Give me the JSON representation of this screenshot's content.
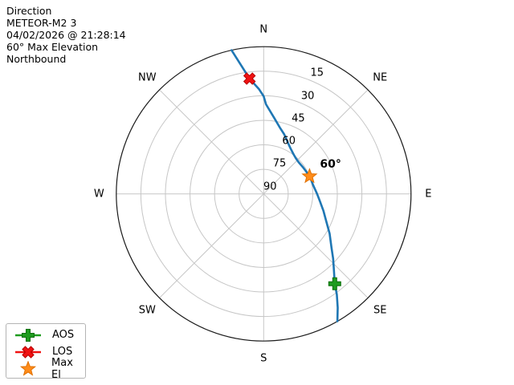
{
  "chart_data": {
    "type": "polar_sky_track",
    "title_lines": [
      "Direction",
      "METEOR-M2 3",
      "04/02/2026 @ 21:28:14",
      "60° Max Elevation",
      "Northbound"
    ],
    "compass_labels": [
      "N",
      "NE",
      "E",
      "SE",
      "S",
      "SW",
      "W",
      "NW"
    ],
    "compass_azimuths_deg": [
      0,
      45,
      90,
      135,
      180,
      225,
      270,
      315
    ],
    "elevation_tick_labels": [
      "15",
      "30",
      "45",
      "60",
      "75",
      "90"
    ],
    "elevation_tick_values": [
      15,
      30,
      45,
      60,
      75,
      90
    ],
    "elevation_range_deg": [
      0,
      90
    ],
    "grid": true,
    "grid_color": "#c6c6c6",
    "outline_color": "#1a1a1a",
    "track": {
      "name": "satellite-sky-track",
      "color": "#1f77b4",
      "points_az_el": [
        [
          150,
          0
        ],
        [
          147,
          7
        ],
        [
          144,
          14
        ],
        [
          141.7,
          20
        ],
        [
          137.5,
          26.5
        ],
        [
          133,
          32
        ],
        [
          128.6,
          37
        ],
        [
          121,
          43
        ],
        [
          113.8,
          48.2
        ],
        [
          106,
          52
        ],
        [
          98,
          55.2
        ],
        [
          90,
          57.4
        ],
        [
          80,
          59.3
        ],
        [
          74,
          59.8
        ],
        [
          69,
          60.2
        ],
        [
          63,
          60.6
        ],
        [
          56,
          61
        ],
        [
          48,
          61.2
        ],
        [
          42,
          60.7
        ],
        [
          36.8,
          59.6
        ],
        [
          30,
          57.5
        ],
        [
          24.6,
          55
        ],
        [
          19,
          51.5
        ],
        [
          14,
          48.5
        ],
        [
          7.8,
          43
        ],
        [
          1.5,
          35.2
        ],
        [
          0,
          30.3
        ],
        [
          357.5,
          26
        ],
        [
          353,
          19
        ],
        [
          350,
          10
        ],
        [
          347.4,
          0
        ]
      ]
    },
    "markers": [
      {
        "label": "AOS",
        "shape": "plus",
        "color": "#1e9b1e",
        "edge_color": "#0d6e0d",
        "az": 141.7,
        "el": 20
      },
      {
        "label": "LOS",
        "shape": "x",
        "color": "#f01212",
        "edge_color": "#b30000",
        "az": 353,
        "el": 19
      },
      {
        "label": "Max El",
        "shape": "star",
        "color": "#ff8c1a",
        "edge_color": "#e07000",
        "az": 69,
        "el": 60
      }
    ],
    "annotation": {
      "text": "60°"
    },
    "legend": {
      "position": "bottom-left",
      "items": [
        {
          "label": "AOS",
          "shape": "plus",
          "color": "#1e9b1e",
          "edge_color": "#0d6e0d",
          "has_line": true
        },
        {
          "label": "LOS",
          "shape": "x",
          "color": "#f01212",
          "edge_color": "#b30000",
          "has_line": true
        },
        {
          "label": "Max El",
          "shape": "star",
          "color": "#ff8c1a",
          "edge_color": "#e07000",
          "has_line": false
        }
      ]
    }
  }
}
